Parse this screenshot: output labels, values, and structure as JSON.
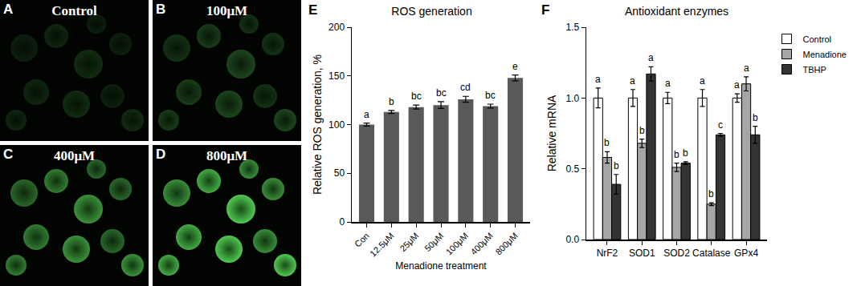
{
  "image_panels": [
    {
      "letter": "A",
      "label": "Control"
    },
    {
      "letter": "B",
      "label": "100μM"
    },
    {
      "letter": "C",
      "label": "400μM"
    },
    {
      "letter": "D",
      "label": "800μM"
    }
  ],
  "chart_data": [
    {
      "panel_label": "E",
      "type": "bar",
      "title": "ROS generation",
      "x_label": "Menadione treatment",
      "y_label": "Relative ROS generation, %",
      "categories": [
        "Con",
        "12.5μM",
        "25μM",
        "50μM",
        "100μM",
        "400μM",
        "800μM"
      ],
      "values": [
        100,
        113,
        118,
        120,
        126,
        119,
        148
      ],
      "errors": [
        1.5,
        1.5,
        2,
        3.5,
        3,
        2,
        3
      ],
      "annotations": [
        "a",
        "b",
        "bc",
        "bc",
        "cd",
        "bc",
        "e"
      ],
      "color": "#595959",
      "ylim": [
        0,
        200
      ],
      "yticks": [
        0,
        50,
        100,
        150,
        200
      ],
      "grid": false
    },
    {
      "panel_label": "F",
      "type": "bar",
      "title": "Antioxidant enzymes",
      "y_label": "Relative mRNA",
      "categories": [
        "NrF2",
        "SOD1",
        "SOD2",
        "Catalase",
        "GPx4"
      ],
      "series": [
        {
          "name": "Control",
          "color": "#ffffff",
          "values": [
            1.0,
            1.0,
            1.0,
            1.0,
            1.0
          ],
          "errors": [
            0.07,
            0.06,
            0.04,
            0.06,
            0.03
          ],
          "annotations": [
            "a",
            "a",
            "a",
            "a",
            "a"
          ]
        },
        {
          "name": "Menadione",
          "color": "#a6a6a6",
          "values": [
            0.58,
            0.68,
            0.51,
            0.25,
            1.1
          ],
          "errors": [
            0.04,
            0.03,
            0.03,
            0.01,
            0.05
          ],
          "annotations": [
            "b",
            "b",
            "b",
            "b",
            "a"
          ]
        },
        {
          "name": "TBHP",
          "color": "#333333",
          "values": [
            0.39,
            1.17,
            0.54,
            0.74,
            0.74
          ],
          "errors": [
            0.07,
            0.05,
            0.01,
            0.01,
            0.06
          ],
          "annotations": [
            "b",
            "a",
            "b",
            "c",
            "b"
          ]
        }
      ],
      "ylim": [
        0,
        1.5
      ],
      "yticks": [
        {
          "value": 0,
          "label": "0.0"
        },
        {
          "value": 0.5,
          "label": "0.5"
        },
        {
          "value": 1,
          "label": "1.0"
        },
        {
          "value": 1.5,
          "label": "1.5"
        }
      ],
      "legend": "top right",
      "grid": false
    }
  ]
}
